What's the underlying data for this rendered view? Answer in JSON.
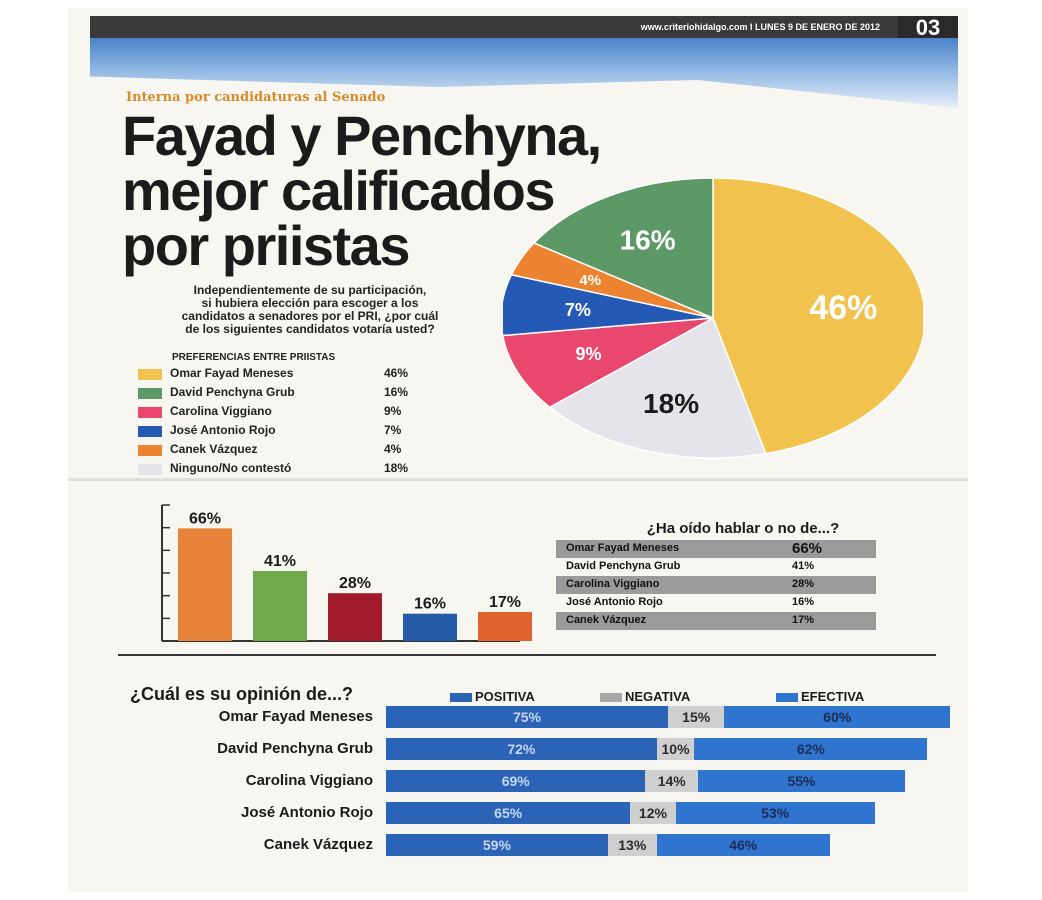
{
  "header": {
    "url_date": "www.criteriohidalgo.com I LUNES 9 DE ENERO DE 2012",
    "page_number": "03"
  },
  "kicker": "Interna por candidaturas al Senado",
  "headline": {
    "line1": "Fayad y Penchyna,",
    "line2": "mejor calificados",
    "line3": "por priistas"
  },
  "question": {
    "line1": "Independientemente de su participación,",
    "line2": "si hubiera elección para escoger a los",
    "line3": "candidatos a senadores por el PRI, ¿por cuál",
    "line4": "de los siguientes candidatos votaría usted?"
  },
  "legend_title": "PREFERENCIAS ENTRE PRIISTAS",
  "colors": {
    "fayad": "#f2c24e",
    "penchyna": "#5d9967",
    "viggiano": "#e9476d",
    "rojo": "#2459b5",
    "vazquez": "#eb8330",
    "ninguno": "#e4e4ea"
  },
  "chart_data": [
    {
      "type": "pie",
      "title": "PREFERENCIAS ENTRE PRIISTAS",
      "categories": [
        "Omar Fayad Meneses",
        "David Penchyna Grub",
        "Carolina Viggiano",
        "José Antonio Rojo",
        "Canek Vázquez",
        "Ninguno/No contestó"
      ],
      "values": [
        46,
        16,
        9,
        7,
        4,
        18
      ],
      "labels": [
        "46%",
        "16%",
        "9%",
        "7%",
        "4%",
        "18%"
      ],
      "slice_order": [
        0,
        5,
        2,
        3,
        4,
        1
      ],
      "colors": [
        "#f2c24e",
        "#5d9967",
        "#e9476d",
        "#2459b5",
        "#eb8330",
        "#e4e4ea"
      ],
      "label_colors": [
        "#ffffff",
        "#ffffff",
        "#ffffff",
        "#ffffff",
        "#ffffff",
        "#1b1b1b"
      ]
    },
    {
      "type": "bar",
      "title": "¿Ha oído hablar o no de...?",
      "categories": [
        "Omar Fayad Meneses",
        "David Penchyna Grub",
        "Carolina Viggiano",
        "José Antonio Rojo",
        "Canek Vázquez"
      ],
      "values": [
        66,
        41,
        28,
        16,
        17
      ],
      "labels": [
        "66%",
        "41%",
        "28%",
        "16%",
        "17%"
      ],
      "colors": [
        "#e8843a",
        "#6ea94e",
        "#a11b2b",
        "#245aa8",
        "#e0622c"
      ],
      "ylim": [
        0,
        75
      ]
    },
    {
      "type": "bar",
      "orientation": "horizontal-stacked",
      "title": "¿Cuál es su opinión de...?",
      "categories": [
        "Omar Fayad Meneses",
        "David Penchyna Grub",
        "Carolina Viggiano",
        "José Antonio Rojo",
        "Canek Vázquez"
      ],
      "series": [
        {
          "name": "POSITIVA",
          "values": [
            75,
            72,
            69,
            65,
            59
          ],
          "labels": [
            "75%",
            "72%",
            "69%",
            "65%",
            "59%"
          ]
        },
        {
          "name": "NEGATIVA",
          "values": [
            15,
            10,
            14,
            12,
            13
          ],
          "labels": [
            "15%",
            "10%",
            "14%",
            "12%",
            "13%"
          ]
        },
        {
          "name": "EFECTIVA",
          "values": [
            60,
            62,
            55,
            53,
            46
          ],
          "labels": [
            "60%",
            "62%",
            "55%",
            "53%",
            "46%"
          ]
        }
      ],
      "colors": [
        "#2b63b7",
        "#cfcfcf",
        "#2f75cf"
      ]
    }
  ]
}
